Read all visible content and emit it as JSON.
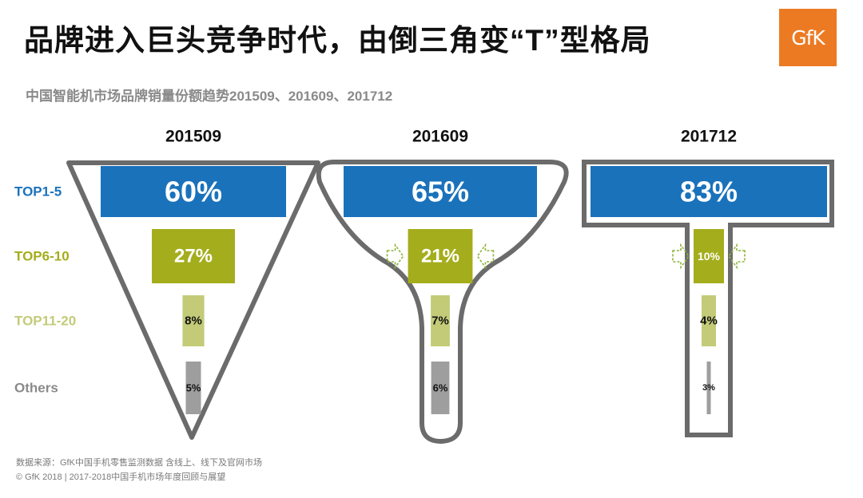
{
  "header": {
    "title": "品牌进入巨头竞争时代，由倒三角变“T”型格局",
    "subtitle": "中国智能机市场品牌销量份额趋势201509、201609、201712",
    "logo_text": "GfK"
  },
  "footer": {
    "source": "数据来源：GfK中国手机零售监测数据 含线上、线下及官网市场",
    "copyright": "© GfK 2018 | 2017-2018中国手机市场年度回顾与展望"
  },
  "chart_data": {
    "type": "bar",
    "title": "中国智能机市场品牌销量份额趋势201509、201609、201712",
    "categories": [
      "TOP1-5",
      "TOP6-10",
      "TOP11-20",
      "Others"
    ],
    "category_colors": [
      "#1a72bb",
      "#a4ad1c",
      "#c3cb78",
      "#9e9e9e"
    ],
    "value_unit": "%",
    "series": [
      {
        "name": "201509",
        "values": [
          60,
          27,
          8,
          5
        ]
      },
      {
        "name": "201609",
        "values": [
          65,
          21,
          7,
          6
        ]
      },
      {
        "name": "201712",
        "values": [
          83,
          10,
          4,
          3
        ]
      }
    ],
    "outline_shapes": [
      "inverted-triangle",
      "funnel",
      "T-shape"
    ],
    "shrink_arrows": [
      false,
      true,
      true
    ],
    "outline_color": "#6b6b6b",
    "arrow_color": "#8db43a"
  }
}
